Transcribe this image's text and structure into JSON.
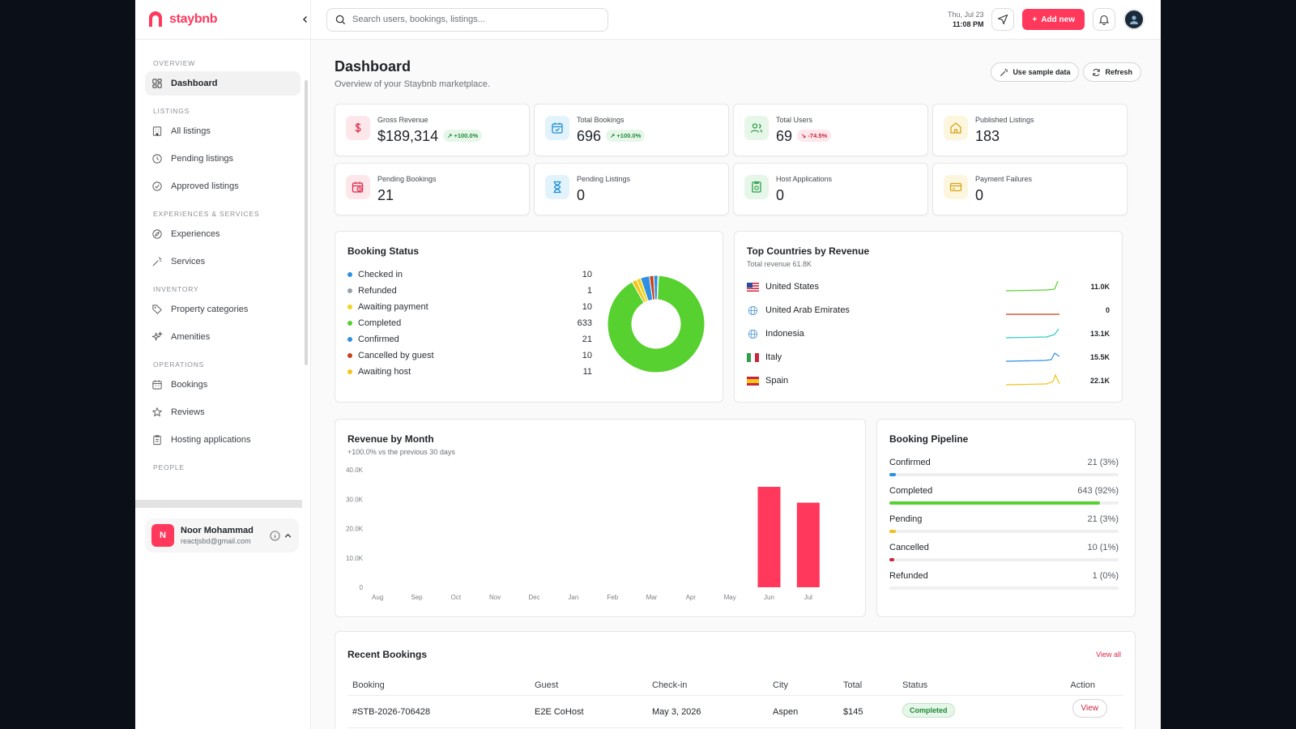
{
  "brand": {
    "name": "staybnb"
  },
  "sidebar": {
    "sections": [
      {
        "label": "OVERVIEW",
        "items": [
          {
            "label": "Dashboard",
            "icon": "grid-icon",
            "active": true
          }
        ]
      },
      {
        "label": "LISTINGS",
        "items": [
          {
            "label": "All listings",
            "icon": "building-icon"
          },
          {
            "label": "Pending listings",
            "icon": "clock-icon"
          },
          {
            "label": "Approved listings",
            "icon": "check-circle-icon"
          }
        ]
      },
      {
        "label": "EXPERIENCES & SERVICES",
        "items": [
          {
            "label": "Experiences",
            "icon": "compass-icon"
          },
          {
            "label": "Services",
            "icon": "wand-icon"
          }
        ]
      },
      {
        "label": "INVENTORY",
        "items": [
          {
            "label": "Property categories",
            "icon": "tag-icon"
          },
          {
            "label": "Amenities",
            "icon": "sparkles-icon"
          }
        ]
      },
      {
        "label": "OPERATIONS",
        "items": [
          {
            "label": "Bookings",
            "icon": "calendar-icon"
          },
          {
            "label": "Reviews",
            "icon": "star-icon"
          },
          {
            "label": "Hosting applications",
            "icon": "clipboard-icon"
          }
        ]
      },
      {
        "label": "PEOPLE",
        "items": []
      }
    ],
    "user": {
      "initial": "N",
      "name": "Noor Mohammad",
      "email": "reactjsbd@gmail.com"
    }
  },
  "topbar": {
    "search_placeholder": "Search users, bookings, listings...",
    "date": "Thu, Jul 23",
    "time": "11:08 PM",
    "add_label": "Add new"
  },
  "page": {
    "title": "Dashboard",
    "subtitle": "Overview of your Staybnb marketplace.",
    "sample_label": "Use sample data",
    "refresh_label": "Refresh"
  },
  "stats": [
    {
      "label": "Gross Revenue",
      "value": "$189,314",
      "delta": "↗ +100.0%",
      "trend": "up",
      "icon": "dollar-icon",
      "color": "#fde7ea",
      "ink": "#e0284a"
    },
    {
      "label": "Total Bookings",
      "value": "696",
      "delta": "↗ +100.0%",
      "trend": "up",
      "icon": "calendar-icon",
      "color": "#e3f3fb",
      "ink": "#1d8fd6"
    },
    {
      "label": "Total Users",
      "value": "69",
      "delta": "↘ -74.5%",
      "trend": "down",
      "icon": "users-icon",
      "color": "#e6f6e9",
      "ink": "#2e9e4a"
    },
    {
      "label": "Published Listings",
      "value": "183",
      "delta": "",
      "trend": "",
      "icon": "home-icon",
      "color": "#fdf6df",
      "ink": "#d6a416"
    },
    {
      "label": "Pending Bookings",
      "value": "21",
      "delta": "",
      "trend": "",
      "icon": "calendar-clock-icon",
      "color": "#fde7ea",
      "ink": "#e0284a"
    },
    {
      "label": "Pending Listings",
      "value": "0",
      "delta": "",
      "trend": "",
      "icon": "hourglass-icon",
      "color": "#e3f3fb",
      "ink": "#1d8fd6"
    },
    {
      "label": "Host Applications",
      "value": "0",
      "delta": "",
      "trend": "",
      "icon": "clipboard-check-icon",
      "color": "#e6f6e9",
      "ink": "#2e9e4a"
    },
    {
      "label": "Payment Failures",
      "value": "0",
      "delta": "",
      "trend": "",
      "icon": "credit-card-icon",
      "color": "#fdf6df",
      "ink": "#d6a416"
    }
  ],
  "booking_status": {
    "title": "Booking Status",
    "items": [
      {
        "label": "Checked in",
        "value": "10",
        "color": "#2f8fe0"
      },
      {
        "label": "Refunded",
        "value": "1",
        "color": "#9aa0a6"
      },
      {
        "label": "Awaiting payment",
        "value": "10",
        "color": "#f2d31b"
      },
      {
        "label": "Completed",
        "value": "633",
        "color": "#57d12f"
      },
      {
        "label": "Confirmed",
        "value": "21",
        "color": "#2f8fe0"
      },
      {
        "label": "Cancelled by guest",
        "value": "10",
        "color": "#c8421b"
      },
      {
        "label": "Awaiting host",
        "value": "11",
        "color": "#f5c518"
      }
    ]
  },
  "top_countries": {
    "title": "Top Countries by Revenue",
    "subtitle": "Total revenue 61.8K",
    "items": [
      {
        "name": "United States",
        "value": "11.0K",
        "flag": "us-flag-icon",
        "color": "#57d12f"
      },
      {
        "name": "United Arab Emirates",
        "value": "0",
        "flag": "globe-icon",
        "color": "#c8421b"
      },
      {
        "name": "Indonesia",
        "value": "13.1K",
        "flag": "globe-icon",
        "color": "#33c7c2"
      },
      {
        "name": "Italy",
        "value": "15.5K",
        "flag": "it-flag-icon",
        "color": "#2f8fe0"
      },
      {
        "name": "Spain",
        "value": "22.1K",
        "flag": "es-flag-icon",
        "color": "#f2c21b"
      }
    ]
  },
  "revenue": {
    "title": "Revenue by Month",
    "subtitle": "+100.0% vs the previous 30 days"
  },
  "chart_data": {
    "type": "bar",
    "categories": [
      "Aug",
      "Sep",
      "Oct",
      "Nov",
      "Dec",
      "Jan",
      "Feb",
      "Mar",
      "Apr",
      "May",
      "Jun",
      "Jul"
    ],
    "values": [
      0,
      0,
      0,
      0,
      0,
      0,
      0,
      0,
      0,
      0,
      34200,
      28800
    ],
    "ytick_labels": [
      "0",
      "10.0K",
      "20.0K",
      "30.0K",
      "40.0K"
    ],
    "ylim": [
      0,
      40000
    ],
    "color": "#ff385c",
    "grid": false
  },
  "pipeline": {
    "title": "Booking Pipeline",
    "rows": [
      {
        "label": "Confirmed",
        "value": "21 (3%)",
        "fraction": 0.03,
        "color": "#2f8fe0"
      },
      {
        "label": "Completed",
        "value": "643 (92%)",
        "fraction": 0.92,
        "color": "#57d12f"
      },
      {
        "label": "Pending",
        "value": "21 (3%)",
        "fraction": 0.03,
        "color": "#f2c21b"
      },
      {
        "label": "Cancelled",
        "value": "10 (1%)",
        "fraction": 0.01,
        "color": "#c8283f"
      },
      {
        "label": "Refunded",
        "value": "1 (0%)",
        "fraction": 0.0,
        "color": "#9aa0a6"
      }
    ]
  },
  "recent": {
    "title": "Recent Bookings",
    "view_all": "View all",
    "headers": [
      "Booking",
      "Guest",
      "Check-in",
      "City",
      "Total",
      "Status",
      "Action"
    ],
    "rows": [
      {
        "booking": "#STB-2026-706428",
        "guest": "E2E CoHost",
        "checkin": "May 3, 2026",
        "city": "Aspen",
        "total": "$145",
        "status": "Completed",
        "action": "View"
      }
    ]
  }
}
